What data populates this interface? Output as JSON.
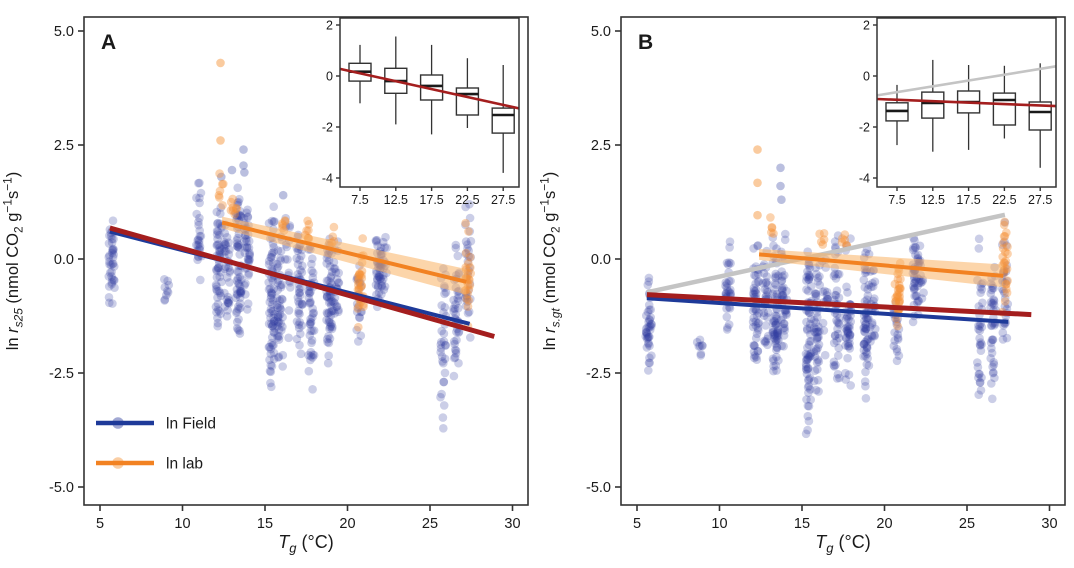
{
  "figure": {
    "title": "",
    "background": "#ffffff"
  },
  "colors": {
    "field_point": "#2e3d9e",
    "lab_point": "#f59236",
    "field_line": "#1e3a99",
    "lab_line": "#f28222",
    "lab_band": "#f9b264",
    "dark_red_line": "#a41e1e",
    "gray_line": "#c4c4c4",
    "axis": "#333333",
    "tick_text": "#404040",
    "box_fill": "#ffffff",
    "median": "#1a1a1a"
  },
  "chart_data": [
    {
      "type": "scatter",
      "panel_label": "A",
      "xlabel_parts": [
        [
          "T",
          "i"
        ],
        [
          "g",
          "isub"
        ],
        [
          " (°C)",
          "n"
        ]
      ],
      "ylabel_parts": [
        [
          "ln ",
          "n"
        ],
        [
          "r",
          "i"
        ],
        [
          "s25",
          "isub"
        ],
        [
          "  (nmol CO",
          "n"
        ],
        [
          "2",
          "sub"
        ],
        [
          " g",
          "n"
        ],
        [
          "−1",
          "sup"
        ],
        [
          "s",
          "n"
        ],
        [
          "−1",
          "sup"
        ],
        [
          ")",
          "n"
        ]
      ],
      "xlim": [
        3.9,
        31.1
      ],
      "ylim": [
        -5.4,
        5.3
      ],
      "x_ticks": [
        {
          "v": 5,
          "label": "5"
        },
        {
          "v": 10,
          "label": "10"
        },
        {
          "v": 15,
          "label": "15"
        },
        {
          "v": 20,
          "label": "20"
        },
        {
          "v": 25,
          "label": "25"
        },
        {
          "v": 30,
          "label": "30"
        }
      ],
      "y_ticks": [
        {
          "v": 5,
          "label": "5.0"
        },
        {
          "v": 2.5,
          "label": "2.5"
        },
        {
          "v": 0,
          "label": "0.0"
        },
        {
          "v": -2.5,
          "label": "-2.5"
        },
        {
          "v": -5,
          "label": "-5.0"
        }
      ],
      "series": [
        {
          "name": "ln Field",
          "color_key": "field_point",
          "strips": [
            [
              5.7,
              -1.25,
              1.45,
              40
            ],
            [
              9.0,
              -1.1,
              -0.35,
              9
            ],
            [
              11.0,
              -0.6,
              1.9,
              28
            ],
            [
              12.2,
              -1.85,
              1.75,
              52
            ],
            [
              12.7,
              -1.4,
              1.15,
              34
            ],
            [
              13.4,
              -2.05,
              1.9,
              62
            ],
            [
              13.9,
              -1.35,
              1.6,
              40
            ],
            [
              15.4,
              -3.3,
              1.5,
              72
            ],
            [
              15.9,
              -2.6,
              0.95,
              46
            ],
            [
              16.4,
              -2.5,
              1.5,
              16
            ],
            [
              17.1,
              -2.6,
              0.95,
              44
            ],
            [
              17.8,
              -2.95,
              1.1,
              46
            ],
            [
              18.9,
              -2.7,
              0.85,
              58
            ],
            [
              19.3,
              -1.9,
              0.55,
              24
            ],
            [
              20.7,
              -1.95,
              -0.05,
              20
            ],
            [
              21.9,
              -1.25,
              0.8,
              38
            ],
            [
              22.2,
              -0.95,
              0.65,
              18
            ],
            [
              25.8,
              -3.95,
              0.5,
              34
            ],
            [
              26.6,
              -3.05,
              0.45,
              40
            ],
            [
              27.3,
              -2.0,
              1.3,
              30
            ]
          ],
          "outliers": [
            [
              13.7,
              2.4
            ],
            [
              13.7,
              2.05
            ],
            [
              13.75,
              1.9
            ],
            [
              13.0,
              1.95
            ],
            [
              12.35,
              1.8
            ],
            [
              16.1,
              1.4
            ]
          ]
        },
        {
          "name": "ln lab",
          "color_key": "lab_point",
          "strips": [
            [
              12.3,
              0.9,
              2.0,
              7
            ],
            [
              13.1,
              0.75,
              1.45,
              8
            ],
            [
              16.2,
              0.5,
              0.95,
              6
            ],
            [
              17.5,
              0.3,
              0.9,
              8
            ],
            [
              19.0,
              0.15,
              0.8,
              6
            ],
            [
              20.8,
              -1.6,
              0.5,
              30
            ],
            [
              27.3,
              -1.5,
              0.95,
              26
            ]
          ],
          "outliers": [
            [
              12.3,
              4.3
            ],
            [
              12.3,
              2.6
            ]
          ]
        }
      ],
      "lines": [
        {
          "name": "lab-regression",
          "color_key": "lab_line",
          "x": [
            12.4,
            27.2
          ],
          "y": [
            0.8,
            -0.5
          ],
          "band": [
            0.13,
            0.28
          ],
          "width": 4
        },
        {
          "name": "field-regression",
          "color_key": "field_line",
          "x": [
            5.6,
            27.4
          ],
          "y": [
            0.6,
            -1.42
          ],
          "width": 4
        },
        {
          "name": "overall-regression",
          "color_key": "dark_red_line",
          "x": [
            5.6,
            28.9
          ],
          "y": [
            0.68,
            -1.7
          ],
          "width": 5
        }
      ],
      "legend": {
        "items": [
          {
            "label": "ln Field",
            "line_key": "field_line",
            "point_key": "field_point"
          },
          {
            "label": "ln lab",
            "line_key": "lab_line",
            "point_key": "lab_point"
          }
        ]
      },
      "inset": {
        "type": "boxplot",
        "x_ticks": [
          {
            "v": 7.5,
            "label": "7.5"
          },
          {
            "v": 12.5,
            "label": "12.5"
          },
          {
            "v": 17.5,
            "label": "17.5"
          },
          {
            "v": 22.5,
            "label": "22.5"
          },
          {
            "v": 27.5,
            "label": "27.5"
          }
        ],
        "y_ticks": [
          {
            "v": 2,
            "label": "2"
          },
          {
            "v": 0,
            "label": "0"
          },
          {
            "v": -2,
            "label": "-2"
          },
          {
            "v": -4,
            "label": "-4"
          }
        ],
        "boxes": [
          {
            "x": 7.5,
            "lo": -1.07,
            "q1": -0.2,
            "med": 0.17,
            "q3": 0.5,
            "hi": 1.22
          },
          {
            "x": 12.5,
            "lo": -1.9,
            "q1": -0.68,
            "med": -0.2,
            "q3": 0.3,
            "hi": 1.55
          },
          {
            "x": 17.5,
            "lo": -2.29,
            "q1": -0.94,
            "med": -0.39,
            "q3": 0.04,
            "hi": 1.22
          },
          {
            "x": 22.5,
            "lo": -2.04,
            "q1": -1.53,
            "med": -0.71,
            "q3": -0.47,
            "hi": 0.7
          },
          {
            "x": 27.5,
            "lo": -3.8,
            "q1": -2.24,
            "med": -1.53,
            "q3": -1.26,
            "hi": 0.43
          }
        ],
        "lines": [
          {
            "name": "inset-regression",
            "color_key": "dark_red_line",
            "left": 0.28,
            "right": -1.27,
            "width": 2.6
          }
        ]
      }
    },
    {
      "type": "scatter",
      "panel_label": "B",
      "xlabel_parts": [
        [
          "T",
          "i"
        ],
        [
          "g",
          "isub"
        ],
        [
          " (°C)",
          "n"
        ]
      ],
      "ylabel_parts": [
        [
          "ln ",
          "n"
        ],
        [
          "r",
          "i"
        ],
        [
          "s.gt",
          "isub"
        ],
        [
          " (nmol CO",
          "n"
        ],
        [
          "2",
          "sub"
        ],
        [
          " g",
          "n"
        ],
        [
          "−1",
          "sup"
        ],
        [
          "s",
          "n"
        ],
        [
          "−1",
          "sup"
        ],
        [
          ")",
          "n"
        ]
      ],
      "xlim": [
        3.9,
        31.1
      ],
      "ylim": [
        -5.4,
        5.3
      ],
      "x_ticks": [
        {
          "v": 5,
          "label": "5"
        },
        {
          "v": 10,
          "label": "10"
        },
        {
          "v": 15,
          "label": "15"
        },
        {
          "v": 20,
          "label": "20"
        },
        {
          "v": 25,
          "label": "25"
        },
        {
          "v": 30,
          "label": "30"
        }
      ],
      "y_ticks": [
        {
          "v": 5,
          "label": "5.0"
        },
        {
          "v": 2.5,
          "label": "2.5"
        },
        {
          "v": 0,
          "label": "0.0"
        },
        {
          "v": -2.5,
          "label": "-2.5"
        },
        {
          "v": -5,
          "label": "-5.0"
        }
      ],
      "series": [
        {
          "name": "ln Field",
          "color_key": "field_point",
          "strips": [
            [
              5.7,
              -2.6,
              -0.3,
              42
            ],
            [
              8.8,
              -2.25,
              -1.7,
              8
            ],
            [
              10.5,
              -2.0,
              0.45,
              34
            ],
            [
              12.2,
              -2.5,
              0.6,
              52
            ],
            [
              12.8,
              -2.2,
              0.35,
              32
            ],
            [
              13.4,
              -2.9,
              0.5,
              62
            ],
            [
              13.9,
              -2.4,
              0.6,
              40
            ],
            [
              15.4,
              -4.1,
              0.6,
              72
            ],
            [
              15.9,
              -3.1,
              0.35,
              46
            ],
            [
              16.4,
              -2.7,
              0.7,
              16
            ],
            [
              17.1,
              -2.85,
              0.8,
              44
            ],
            [
              17.8,
              -3.4,
              0.6,
              46
            ],
            [
              18.9,
              -3.1,
              0.5,
              58
            ],
            [
              19.3,
              -2.2,
              0.3,
              24
            ],
            [
              20.7,
              -2.4,
              -0.5,
              20
            ],
            [
              21.9,
              -1.5,
              0.8,
              38
            ],
            [
              22.2,
              -1.2,
              0.5,
              18
            ],
            [
              25.8,
              -3.5,
              0.6,
              34
            ],
            [
              26.6,
              -3.3,
              0.35,
              40
            ],
            [
              27.3,
              -2.2,
              1.2,
              30
            ]
          ],
          "outliers": [
            [
              13.7,
              2.0
            ],
            [
              13.7,
              1.6
            ],
            [
              13.75,
              1.3
            ]
          ]
        },
        {
          "name": "ln lab",
          "color_key": "lab_point",
          "strips": [
            [
              13.2,
              0.3,
              0.95,
              5
            ],
            [
              16.2,
              0.2,
              0.7,
              5
            ],
            [
              17.6,
              0.0,
              0.65,
              6
            ],
            [
              20.8,
              -1.6,
              0.15,
              30
            ],
            [
              27.3,
              -1.35,
              1.0,
              26
            ]
          ],
          "outliers": [
            [
              12.3,
              2.4
            ],
            [
              12.3,
              1.67
            ],
            [
              12.3,
              0.96
            ]
          ]
        }
      ],
      "lines": [
        {
          "name": "upscaled-regression",
          "color_key": "gray_line",
          "x": [
            5.6,
            27.3
          ],
          "y": [
            -0.73,
            0.97
          ],
          "width": 4.5
        },
        {
          "name": "lab-regression",
          "color_key": "lab_line",
          "x": [
            12.4,
            27.2
          ],
          "y": [
            0.1,
            -0.37
          ],
          "band": [
            0.12,
            0.25
          ],
          "width": 4
        },
        {
          "name": "field-regression",
          "color_key": "field_line",
          "x": [
            5.6,
            27.5
          ],
          "y": [
            -0.86,
            -1.38
          ],
          "width": 4
        },
        {
          "name": "overall-regression",
          "color_key": "dark_red_line",
          "x": [
            5.6,
            28.9
          ],
          "y": [
            -0.78,
            -1.22
          ],
          "width": 5
        }
      ],
      "inset": {
        "type": "boxplot",
        "x_ticks": [
          {
            "v": 7.5,
            "label": "7.5"
          },
          {
            "v": 12.5,
            "label": "12.5"
          },
          {
            "v": 17.5,
            "label": "17.5"
          },
          {
            "v": 22.5,
            "label": "22.5"
          },
          {
            "v": 27.5,
            "label": "27.5"
          }
        ],
        "y_ticks": [
          {
            "v": 2,
            "label": "2"
          },
          {
            "v": 0,
            "label": "0"
          },
          {
            "v": -2,
            "label": "-2"
          },
          {
            "v": -4,
            "label": "-4"
          }
        ],
        "boxes": [
          {
            "x": 7.5,
            "lo": -2.71,
            "q1": -1.76,
            "med": -1.37,
            "q3": -1.05,
            "hi": -0.35
          },
          {
            "x": 12.5,
            "lo": -2.97,
            "q1": -1.65,
            "med": -1.06,
            "q3": -0.63,
            "hi": 0.63
          },
          {
            "x": 17.5,
            "lo": -2.9,
            "q1": -1.45,
            "med": -1.02,
            "q3": -0.59,
            "hi": 0.43
          },
          {
            "x": 22.5,
            "lo": -2.45,
            "q1": -1.92,
            "med": -0.94,
            "q3": -0.67,
            "hi": 0.4
          },
          {
            "x": 27.5,
            "lo": -3.6,
            "q1": -2.12,
            "med": -1.41,
            "q3": -1.02,
            "hi": 0.5
          }
        ],
        "lines": [
          {
            "name": "inset-upscaled",
            "color_key": "gray_line",
            "left": -0.76,
            "right": 0.38,
            "width": 2.6
          },
          {
            "name": "inset-regression",
            "color_key": "dark_red_line",
            "left": -0.9,
            "right": -1.18,
            "width": 2.6
          }
        ]
      }
    }
  ]
}
